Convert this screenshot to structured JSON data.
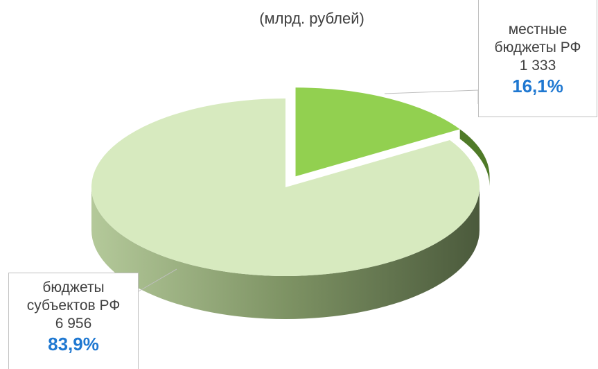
{
  "chart_data": {
    "type": "pie3d",
    "title": "(млрд. рублей)",
    "categories": [
      "местные бюджеты РФ",
      "бюджеты субъектов РФ"
    ],
    "values": [
      1333,
      6956
    ],
    "value_labels": [
      "1 333",
      "6 956"
    ],
    "percents": [
      16.1,
      83.9
    ],
    "percent_labels": [
      "16,1%",
      "83,9%"
    ],
    "colors": [
      "#92d050",
      "#d7eabf"
    ]
  }
}
